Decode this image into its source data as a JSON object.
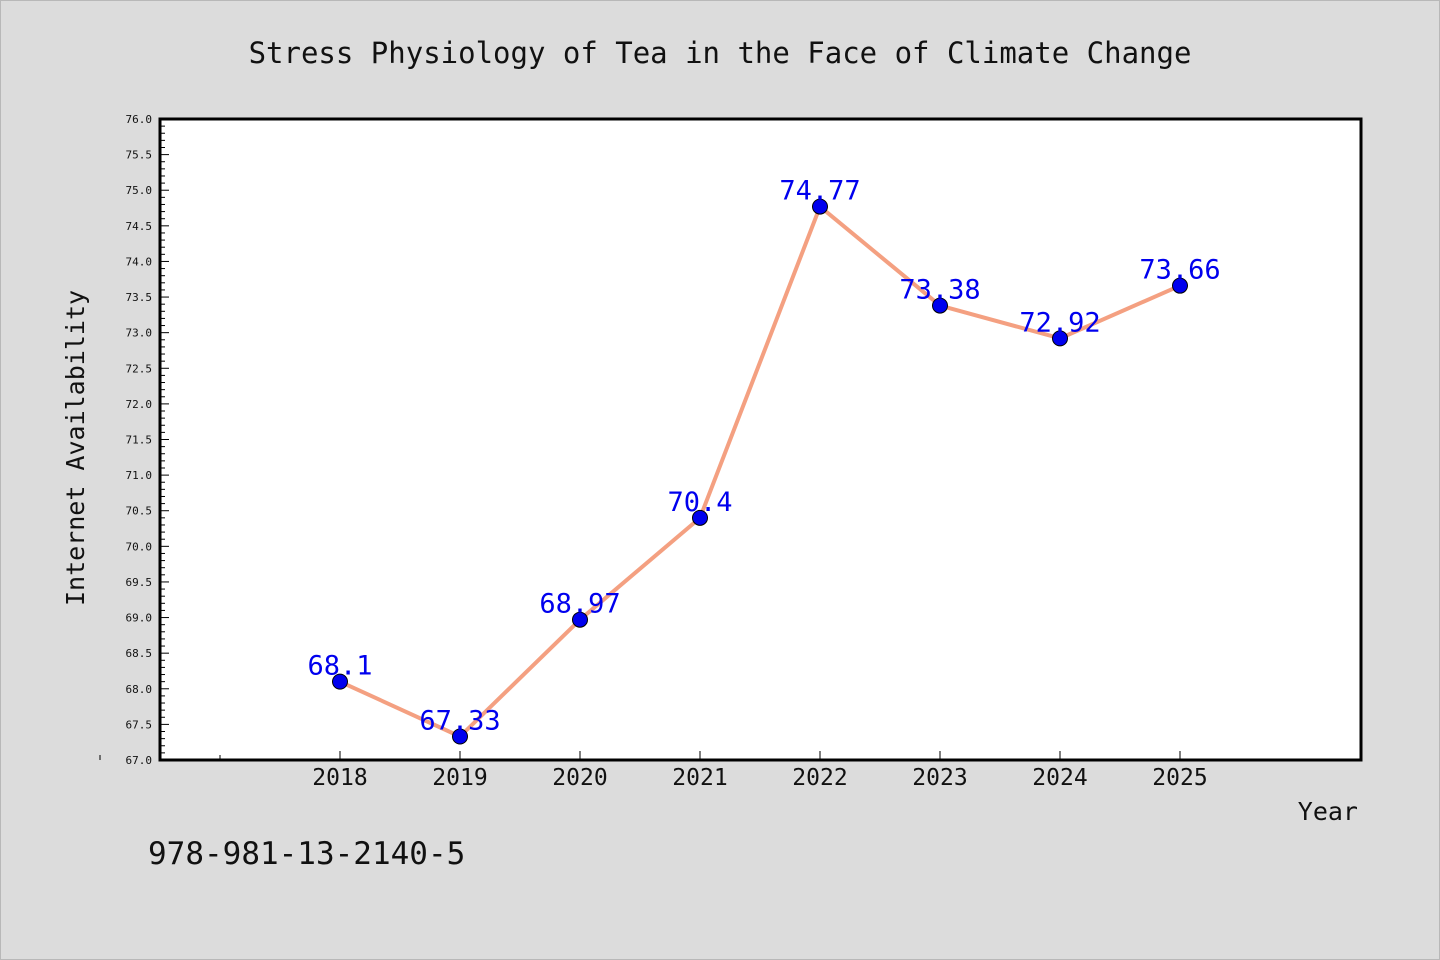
{
  "chart_data": {
    "type": "line",
    "title": "Stress Physiology of Tea in the Face of Climate Change",
    "xlabel": "Year",
    "ylabel": "Internet Availability",
    "categories": [
      "2018",
      "2019",
      "2020",
      "2021",
      "2022",
      "2023",
      "2024",
      "2025"
    ],
    "series": [
      {
        "values": [
          68.1,
          67.33,
          68.97,
          70.4,
          74.77,
          73.38,
          72.92,
          73.66
        ],
        "labels": [
          "68.1",
          "67.33",
          "68.97",
          "70.4",
          "74.77",
          "73.38",
          "72.92",
          "73.66"
        ]
      }
    ],
    "ylim": [
      67.0,
      76.0
    ],
    "ytick_step": 0.5,
    "legend": "none",
    "grid": false,
    "colors": {
      "line": "#f4a081",
      "marker": "#0000ee",
      "data_label": "#0000ee",
      "plot_background": "#ffffff",
      "figure_background": "#dcdcdc"
    }
  },
  "annotation": {
    "text": "978-981-13-2140-5"
  }
}
